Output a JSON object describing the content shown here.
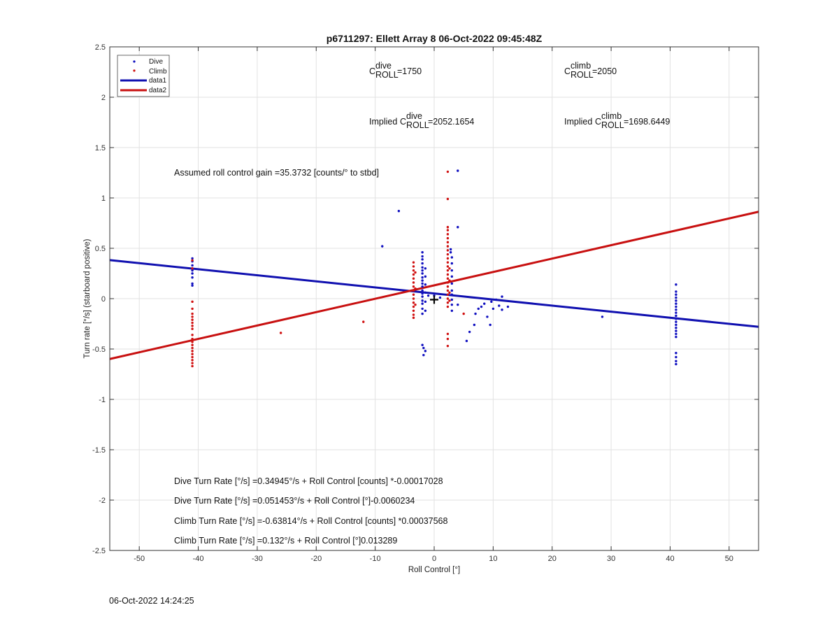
{
  "chart_data": {
    "type": "scatter",
    "title": "p6711297: Ellett Array 8 06-Oct-2022 09:45:48Z",
    "xlabel": "Roll Control [°]",
    "ylabel": "Turn rate [°/s] (starboard positive)",
    "xlim": [
      -55,
      55
    ],
    "ylim": [
      -2.5,
      2.5
    ],
    "xticks": [
      -50,
      -40,
      -30,
      -20,
      -10,
      0,
      10,
      20,
      30,
      40,
      50
    ],
    "yticks": [
      -2.5,
      -2,
      -1.5,
      -1,
      -0.5,
      0,
      0.5,
      1,
      1.5,
      2,
      2.5
    ],
    "grid": true,
    "legend_position": "top-left",
    "legend": [
      {
        "label": "Dive",
        "kind": "marker",
        "color": "#1010c0"
      },
      {
        "label": "Climb",
        "kind": "marker",
        "color": "#d01010"
      },
      {
        "label": "data1",
        "kind": "line",
        "color": "#1010b0"
      },
      {
        "label": "data2",
        "kind": "line",
        "color": "#c81010"
      }
    ],
    "series": [
      {
        "name": "Dive",
        "kind": "scatter",
        "color": "#1010c0",
        "points": [
          [
            -41,
            0.4
          ],
          [
            -41,
            0.37
          ],
          [
            -41,
            0.33
          ],
          [
            -41,
            0.3
          ],
          [
            -41,
            0.28
          ],
          [
            -41,
            0.25
          ],
          [
            -41,
            0.21
          ],
          [
            -41,
            0.15
          ],
          [
            -41,
            0.13
          ],
          [
            -8.8,
            0.52
          ],
          [
            -6,
            0.87
          ],
          [
            -2,
            0.46
          ],
          [
            -2,
            0.42
          ],
          [
            -2,
            0.39
          ],
          [
            -2,
            0.35
          ],
          [
            -2,
            0.31
          ],
          [
            -2,
            0.28
          ],
          [
            -2,
            0.25
          ],
          [
            -2,
            0.21
          ],
          [
            -2,
            0.18
          ],
          [
            -2,
            0.15
          ],
          [
            -2,
            0.12
          ],
          [
            -2,
            0.08
          ],
          [
            -2,
            0.05
          ],
          [
            -2,
            0.02
          ],
          [
            -2,
            -0.02
          ],
          [
            -2,
            -0.05
          ],
          [
            -2,
            -0.1
          ],
          [
            -2,
            -0.15
          ],
          [
            -1.5,
            0.3
          ],
          [
            -1.5,
            0.22
          ],
          [
            -1.5,
            0.14
          ],
          [
            -1.5,
            0.06
          ],
          [
            -1.5,
            -0.03
          ],
          [
            -1.5,
            -0.12
          ],
          [
            -2,
            -0.46
          ],
          [
            -1.8,
            -0.49
          ],
          [
            -1.5,
            -0.52
          ],
          [
            -1.8,
            -0.56
          ],
          [
            -1,
            0.03
          ],
          [
            0,
            0.03
          ],
          [
            1,
            0.01
          ],
          [
            2.8,
            0.49
          ],
          [
            2.8,
            0.46
          ],
          [
            3,
            0.41
          ],
          [
            3,
            0.35
          ],
          [
            3,
            0.28
          ],
          [
            3,
            0.22
          ],
          [
            3,
            0.15
          ],
          [
            3,
            0.08
          ],
          [
            3,
            0.04
          ],
          [
            3,
            -0.01
          ],
          [
            3,
            -0.06
          ],
          [
            3,
            -0.12
          ],
          [
            4,
            1.27
          ],
          [
            4,
            0.71
          ],
          [
            4,
            -0.06
          ],
          [
            5.5,
            -0.42
          ],
          [
            6,
            -0.33
          ],
          [
            6.8,
            -0.26
          ],
          [
            7,
            -0.15
          ],
          [
            7.5,
            -0.1
          ],
          [
            8,
            -0.08
          ],
          [
            8.5,
            -0.05
          ],
          [
            9,
            -0.18
          ],
          [
            9.5,
            -0.26
          ],
          [
            9.7,
            -0.03
          ],
          [
            10,
            -0.1
          ],
          [
            10.5,
            -0.01
          ],
          [
            11,
            -0.07
          ],
          [
            11.5,
            -0.11
          ],
          [
            11.5,
            0.02
          ],
          [
            12.5,
            -0.08
          ],
          [
            28.5,
            -0.18
          ],
          [
            41,
            0.14
          ],
          [
            41,
            0.07
          ],
          [
            41,
            0.04
          ],
          [
            41,
            0.01
          ],
          [
            41,
            -0.02
          ],
          [
            41,
            -0.05
          ],
          [
            41,
            -0.08
          ],
          [
            41,
            -0.11
          ],
          [
            41,
            -0.14
          ],
          [
            41,
            -0.17
          ],
          [
            41,
            -0.2
          ],
          [
            41,
            -0.23
          ],
          [
            41,
            -0.26
          ],
          [
            41,
            -0.29
          ],
          [
            41,
            -0.32
          ],
          [
            41,
            -0.35
          ],
          [
            41,
            -0.38
          ],
          [
            41,
            -0.54
          ],
          [
            41,
            -0.58
          ],
          [
            41,
            -0.62
          ],
          [
            41,
            -0.65
          ]
        ]
      },
      {
        "name": "Climb",
        "kind": "scatter",
        "color": "#d01010",
        "points": [
          [
            -41,
            0.38
          ],
          [
            -41,
            0.3
          ],
          [
            -41,
            -0.03
          ],
          [
            -41,
            -0.1
          ],
          [
            -41,
            -0.15
          ],
          [
            -41,
            -0.18
          ],
          [
            -41,
            -0.21
          ],
          [
            -41,
            -0.24
          ],
          [
            -41,
            -0.27
          ],
          [
            -41,
            -0.3
          ],
          [
            -41,
            -0.36
          ],
          [
            -41,
            -0.4
          ],
          [
            -41,
            -0.43
          ],
          [
            -41,
            -0.46
          ],
          [
            -41,
            -0.49
          ],
          [
            -41,
            -0.52
          ],
          [
            -41,
            -0.55
          ],
          [
            -41,
            -0.58
          ],
          [
            -41,
            -0.61
          ],
          [
            -41,
            -0.64
          ],
          [
            -41,
            -0.67
          ],
          [
            -26,
            -0.34
          ],
          [
            -12,
            -0.23
          ],
          [
            -3.5,
            0.36
          ],
          [
            -3.5,
            0.32
          ],
          [
            -3.5,
            0.28
          ],
          [
            -3.5,
            0.24
          ],
          [
            -3.5,
            0.2
          ],
          [
            -3.5,
            0.16
          ],
          [
            -3.5,
            0.12
          ],
          [
            -3.5,
            0.08
          ],
          [
            -3.5,
            0.04
          ],
          [
            -3.5,
            0.0
          ],
          [
            -3.5,
            -0.04
          ],
          [
            -3.5,
            -0.08
          ],
          [
            -3.5,
            -0.12
          ],
          [
            -3.5,
            -0.16
          ],
          [
            -3.5,
            -0.19
          ],
          [
            -3.2,
            0.26
          ],
          [
            -3.2,
            0.1
          ],
          [
            -3.2,
            -0.06
          ],
          [
            2.3,
            1.26
          ],
          [
            2.3,
            0.99
          ],
          [
            2.3,
            0.71
          ],
          [
            2.3,
            0.68
          ],
          [
            2.3,
            0.64
          ],
          [
            2.3,
            0.6
          ],
          [
            2.3,
            0.56
          ],
          [
            2.3,
            0.52
          ],
          [
            2.3,
            0.48
          ],
          [
            2.3,
            0.44
          ],
          [
            2.3,
            0.4
          ],
          [
            2.3,
            0.36
          ],
          [
            2.3,
            0.32
          ],
          [
            2.3,
            0.28
          ],
          [
            2.3,
            0.24
          ],
          [
            2.3,
            0.2
          ],
          [
            2.3,
            0.16
          ],
          [
            2.3,
            0.12
          ],
          [
            2.3,
            0.08
          ],
          [
            2.3,
            0.04
          ],
          [
            2.3,
            0.0
          ],
          [
            2.3,
            -0.04
          ],
          [
            2.3,
            -0.08
          ],
          [
            2.3,
            -0.35
          ],
          [
            2.3,
            -0.4
          ],
          [
            2.3,
            -0.47
          ],
          [
            2.6,
            0.3
          ],
          [
            2.6,
            0.18
          ],
          [
            2.6,
            0.06
          ],
          [
            2.6,
            -0.02
          ],
          [
            5,
            -0.15
          ]
        ]
      },
      {
        "name": "data1",
        "kind": "line",
        "color": "#1010b0",
        "intercept": 0.051453,
        "slope": -0.0060234
      },
      {
        "name": "data2",
        "kind": "line",
        "color": "#c81010",
        "intercept": 0.132,
        "slope": 0.013289
      }
    ],
    "marker_plus": [
      0,
      -0.01
    ],
    "annotations": {
      "c_dive": {
        "sup": "dive",
        "sub": "ROLL",
        "value": "=1750"
      },
      "c_climb": {
        "sup": "climb",
        "sub": "ROLL",
        "value": "=2050"
      },
      "implied_dive": {
        "prefix": "Implied",
        "sup": "dive",
        "sub": "ROLL",
        "value": "=2052.1654"
      },
      "implied_climb": {
        "prefix": "Implied",
        "sup": "climb",
        "sub": "ROLL",
        "value": "=1698.6449"
      },
      "gain": "Assumed roll control gain =35.3732 [counts/° to stbd]",
      "eq_dive_counts": "Dive Turn Rate [°/s] =0.34945°/s + Roll Control [counts] *-0.00017028",
      "eq_dive_deg": "Dive Turn Rate [°/s] =0.051453°/s + Roll Control [°]-0.0060234",
      "eq_climb_counts": "Climb Turn Rate [°/s] =-0.63814°/s + Roll Control [counts] *0.00037568",
      "eq_climb_deg": "Climb Turn Rate [°/s] =0.132°/s + Roll Control [°]0.013289"
    }
  },
  "timestamp": "06-Oct-2022 14:24:25"
}
